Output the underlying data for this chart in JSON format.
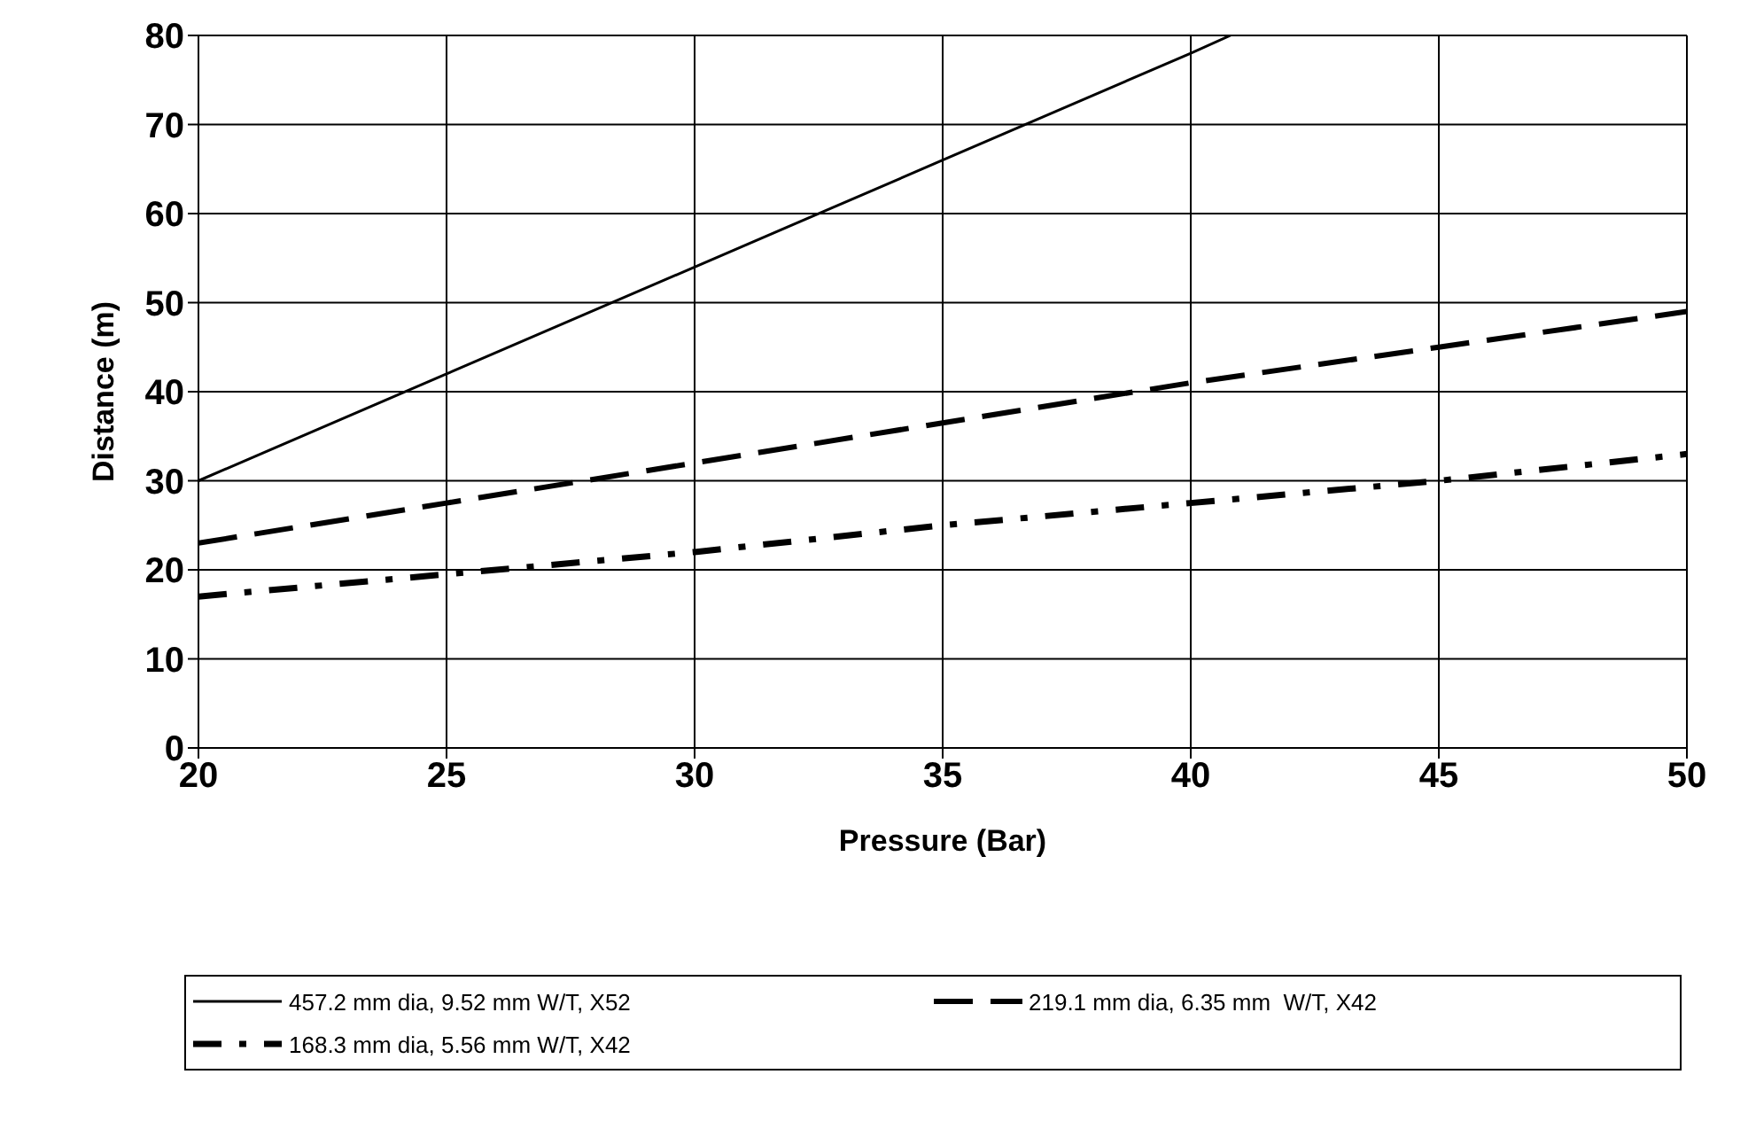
{
  "chart_data": {
    "type": "line",
    "xlabel": "Pressure (Bar)",
    "ylabel": "Distance (m)",
    "xlim": [
      20,
      50
    ],
    "xticks": [
      20,
      25,
      30,
      35,
      40,
      45,
      50
    ],
    "ylim": [
      0,
      80
    ],
    "yticks": [
      0,
      10,
      20,
      30,
      40,
      50,
      60,
      70,
      80
    ],
    "grid": true,
    "legend": "bottom",
    "marker": "none",
    "series": [
      {
        "name": "457.2 mm dia, 9.52 mm W/T, X52",
        "color": "#000000",
        "line_style": "solid",
        "x": [
          20,
          25,
          30,
          35,
          40,
          40.8
        ],
        "values": [
          30,
          42,
          54,
          66,
          78,
          80
        ]
      },
      {
        "name": "219.1 mm dia, 6.35 mm  W/T, X42",
        "color": "#000000",
        "line_style": "dashed",
        "x": [
          20,
          25,
          30,
          35,
          40,
          45,
          50
        ],
        "values": [
          23,
          27.5,
          32,
          36.5,
          41,
          45,
          49
        ]
      },
      {
        "name": "168.3 mm dia, 5.56 mm W/T, X42",
        "color": "#000000",
        "line_style": "dotted",
        "x": [
          20,
          25,
          30,
          35,
          40,
          45,
          50
        ],
        "values": [
          17,
          19.5,
          22,
          25,
          27.5,
          30,
          33
        ]
      }
    ]
  }
}
